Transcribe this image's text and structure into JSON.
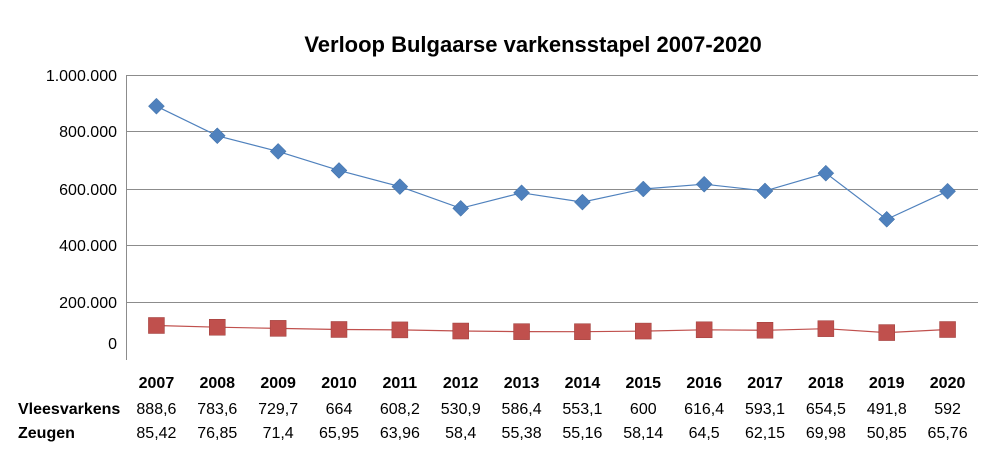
{
  "chart_data": {
    "type": "line",
    "title": "Verloop Bulgaarse varkensstapel 2007-2020",
    "categories": [
      "2007",
      "2008",
      "2009",
      "2010",
      "2011",
      "2012",
      "2013",
      "2014",
      "2015",
      "2016",
      "2017",
      "2018",
      "2019",
      "2020"
    ],
    "y_tick_labels": [
      "1.000.000",
      "800.000",
      "600.000",
      "400.000",
      "200.000",
      "0"
    ],
    "series": [
      {
        "name": "Vleesvarkens",
        "color": "#4f81bd",
        "marker": "diamond",
        "values": [
          888600,
          783600,
          729700,
          664000,
          608200,
          530900,
          586400,
          553100,
          600000,
          616400,
          593100,
          654500,
          491800,
          592000
        ],
        "table_labels": [
          "888,6",
          "783,6",
          "729,7",
          "664",
          "608,2",
          "530,9",
          "586,4",
          "553,1",
          "600",
          "616,4",
          "593,1",
          "654,5",
          "491,8",
          "592"
        ]
      },
      {
        "name": "Zeugen",
        "color": "#c0504d",
        "marker": "square",
        "values": [
          85420,
          76850,
          71400,
          65950,
          63960,
          58400,
          55380,
          55160,
          58140,
          64500,
          62150,
          69980,
          50850,
          65760
        ],
        "table_labels": [
          "85,42",
          "76,85",
          "71,4",
          "65,95",
          "63,96",
          "58,4",
          "55,38",
          "55,16",
          "58,14",
          "64,5",
          "62,15",
          "69,98",
          "50,85",
          "65,76"
        ]
      }
    ],
    "gridlines": true,
    "legend": "data table below chart"
  }
}
